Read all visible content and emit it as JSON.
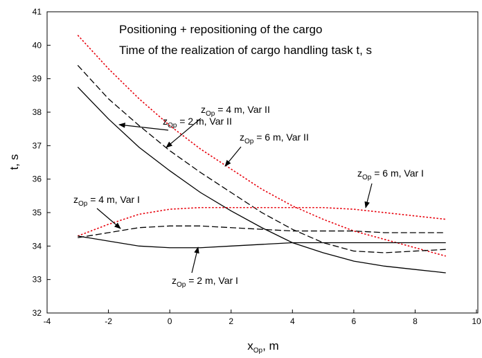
{
  "chart_data": {
    "type": "line",
    "title_lines": [
      "Positioning + repositioning of the cargo",
      "Time of the realization of cargo handling task  t, s"
    ],
    "x_label": {
      "main": "x",
      "sub": "Op",
      "rest": ", m"
    },
    "y_label": "t, s",
    "x": [
      -3,
      -2,
      -1,
      0,
      1,
      2,
      3,
      4,
      5,
      6,
      7,
      8,
      9
    ],
    "xlim": [
      -4,
      10
    ],
    "xticks": [
      -4,
      -2,
      0,
      2,
      4,
      6,
      8,
      10
    ],
    "ylim": [
      32,
      41
    ],
    "yticks": [
      32,
      33,
      34,
      35,
      36,
      37,
      38,
      39,
      40,
      41
    ],
    "series": [
      {
        "color": "#e8000b",
        "dash": "dotted",
        "values": [
          40.3,
          39.3,
          38.4,
          37.6,
          36.9,
          36.3,
          35.7,
          35.2,
          34.8,
          34.45,
          34.2,
          33.95,
          33.7
        ]
      },
      {
        "color": "#000000",
        "dash": "dashed",
        "values": [
          39.4,
          38.4,
          37.6,
          36.85,
          36.2,
          35.6,
          35.0,
          34.5,
          34.1,
          33.85,
          33.8,
          33.85,
          33.9
        ]
      },
      {
        "color": "#000000",
        "dash": "solid",
        "values": [
          38.75,
          37.8,
          36.95,
          36.25,
          35.6,
          35.05,
          34.55,
          34.1,
          33.8,
          33.55,
          33.4,
          33.3,
          33.2
        ]
      },
      {
        "color": "#e8000b",
        "dash": "dotted",
        "values": [
          34.3,
          34.65,
          34.95,
          35.1,
          35.15,
          35.15,
          35.15,
          35.15,
          35.15,
          35.1,
          35.0,
          34.9,
          34.8
        ]
      },
      {
        "color": "#000000",
        "dash": "dashed",
        "values": [
          34.25,
          34.4,
          34.55,
          34.6,
          34.6,
          34.55,
          34.5,
          34.45,
          34.45,
          34.45,
          34.4,
          34.4,
          34.4
        ]
      },
      {
        "color": "#000000",
        "dash": "solid",
        "values": [
          34.3,
          34.15,
          34.0,
          33.95,
          33.95,
          34.0,
          34.05,
          34.1,
          34.1,
          34.1,
          34.1,
          34.1,
          34.1
        ]
      }
    ],
    "annotations": [
      {
        "main": "z",
        "sub": "Op",
        "rest": " = 2 m, Var II"
      },
      {
        "main": "z",
        "sub": "Op",
        "rest": " = 4 m, Var II"
      },
      {
        "main": "z",
        "sub": "Op",
        "rest": " = 6 m, Var II"
      },
      {
        "main": "z",
        "sub": "Op",
        "rest": " = 6 m, Var I"
      },
      {
        "main": "z",
        "sub": "Op",
        "rest": " = 4 m, Var I"
      },
      {
        "main": "z",
        "sub": "Op",
        "rest": " = 2 m, Var I"
      }
    ]
  }
}
